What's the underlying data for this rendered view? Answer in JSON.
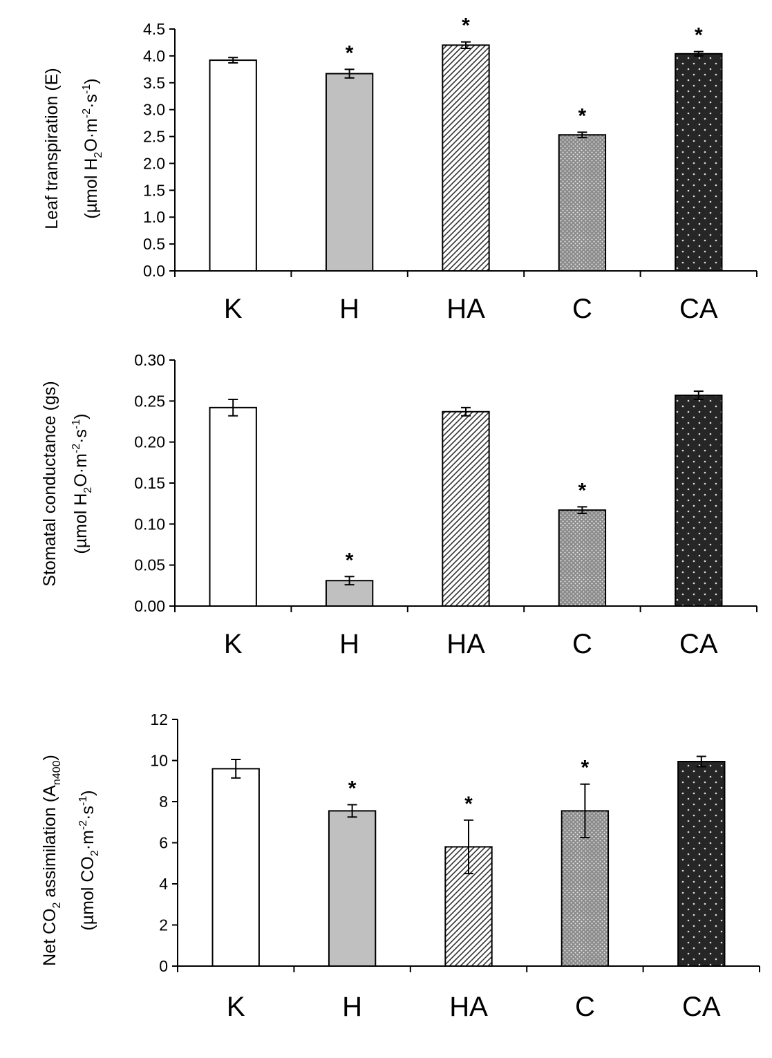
{
  "chart_data": [
    {
      "type": "bar",
      "categories": [
        "K",
        "H",
        "HA",
        "C",
        "CA"
      ],
      "values": [
        3.92,
        3.67,
        4.2,
        2.53,
        4.04
      ],
      "errors": [
        0.05,
        0.08,
        0.06,
        0.05,
        0.04
      ],
      "significant": [
        false,
        true,
        true,
        true,
        true
      ],
      "significance_marker": "*",
      "ylim": [
        0,
        4.5
      ],
      "yticks": [
        "0.0",
        "0.5",
        "1.0",
        "1.5",
        "2.0",
        "2.5",
        "3.0",
        "3.5",
        "4.0",
        "4.5"
      ],
      "ylabel_line1": "Leaf transpiration (E)",
      "ylabel_line2": {
        "a": "(µmol H",
        "b": "2",
        "c": "O·m",
        "d": "-2",
        "e": "·s",
        "f": "-1",
        "g": ")"
      },
      "xlabel": "",
      "title": ""
    },
    {
      "type": "bar",
      "categories": [
        "K",
        "H",
        "HA",
        "C",
        "CA"
      ],
      "values": [
        0.242,
        0.031,
        0.237,
        0.117,
        0.257
      ],
      "errors": [
        0.01,
        0.005,
        0.005,
        0.004,
        0.005
      ],
      "significant": [
        false,
        true,
        false,
        true,
        false
      ],
      "significance_marker": "*",
      "ylim": [
        0,
        0.3
      ],
      "yticks": [
        "0.00",
        "0.05",
        "0.10",
        "0.15",
        "0.20",
        "0.25",
        "0.30"
      ],
      "ylabel_line1": "Stomatal conductance (gs)",
      "ylabel_line2": {
        "a": "(µmol H",
        "b": "2",
        "c": "O·m",
        "d": "-2",
        "e": "·s",
        "f": "-1",
        "g": ")"
      },
      "xlabel": "",
      "title": ""
    },
    {
      "type": "bar",
      "categories": [
        "K",
        "H",
        "HA",
        "C",
        "CA"
      ],
      "values": [
        9.6,
        7.55,
        5.8,
        7.55,
        9.95
      ],
      "errors": [
        0.45,
        0.3,
        1.3,
        1.3,
        0.25
      ],
      "significant": [
        false,
        true,
        true,
        true,
        false
      ],
      "significance_marker": "*",
      "ylim": [
        0,
        12
      ],
      "yticks": [
        "0",
        "2",
        "4",
        "6",
        "8",
        "10",
        "12"
      ],
      "ylabel_line1": {
        "a": "Net CO",
        "b": "2",
        "c": " assimilation (A",
        "d": "n400",
        "e": ")"
      },
      "ylabel_line2": {
        "a": "(µmol CO",
        "b": "2",
        "c": "·m",
        "d": "-2",
        "e": "·s",
        "f": "-1",
        "g": ")"
      },
      "xlabel": "",
      "title": ""
    }
  ]
}
